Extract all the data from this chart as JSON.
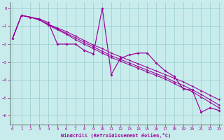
{
  "xlabel": "Windchill (Refroidissement éolien,°C)",
  "background_color": "#c8ecec",
  "grid_color": "#99cccc",
  "line_color": "#990099",
  "xlim": [
    -0.3,
    23.3
  ],
  "ylim": [
    -6.5,
    0.35
  ],
  "yticks": [
    0,
    -1,
    -2,
    -3,
    -4,
    -5,
    -6
  ],
  "xticks": [
    0,
    1,
    2,
    3,
    4,
    5,
    6,
    7,
    8,
    9,
    10,
    11,
    12,
    13,
    14,
    15,
    16,
    17,
    18,
    19,
    20,
    21,
    22,
    23
  ],
  "x": [
    0,
    1,
    2,
    3,
    4,
    5,
    6,
    7,
    8,
    9,
    10,
    11,
    12,
    13,
    14,
    15,
    16,
    17,
    18,
    19,
    20,
    21,
    22,
    23
  ],
  "jagged": [
    -1.7,
    -0.4,
    -0.5,
    -0.6,
    -0.8,
    -2.0,
    -2.0,
    -2.0,
    -2.35,
    -2.55,
    0.0,
    -3.7,
    -2.8,
    -2.6,
    -2.5,
    -2.5,
    -3.05,
    -3.5,
    -3.8,
    -4.5,
    -4.55,
    -5.8,
    -5.55,
    -5.7
  ],
  "smooth1": [
    -1.7,
    -0.4,
    -0.5,
    -0.65,
    -0.9,
    -1.1,
    -1.3,
    -1.55,
    -1.8,
    -2.05,
    -2.25,
    -2.5,
    -2.7,
    -2.9,
    -3.1,
    -3.3,
    -3.5,
    -3.7,
    -3.9,
    -4.1,
    -4.35,
    -4.6,
    -4.85,
    -5.1
  ],
  "smooth2": [
    -1.7,
    -0.4,
    -0.5,
    -0.65,
    -0.9,
    -1.15,
    -1.4,
    -1.65,
    -1.9,
    -2.15,
    -2.4,
    -2.65,
    -2.85,
    -3.05,
    -3.25,
    -3.45,
    -3.65,
    -3.85,
    -4.1,
    -4.3,
    -4.55,
    -4.8,
    -5.1,
    -5.4
  ],
  "smooth3": [
    -1.7,
    -0.4,
    -0.5,
    -0.65,
    -0.95,
    -1.2,
    -1.45,
    -1.75,
    -2.0,
    -2.25,
    -2.5,
    -2.75,
    -2.95,
    -3.15,
    -3.35,
    -3.55,
    -3.75,
    -3.95,
    -4.2,
    -4.45,
    -4.65,
    -4.95,
    -5.25,
    -5.55
  ]
}
